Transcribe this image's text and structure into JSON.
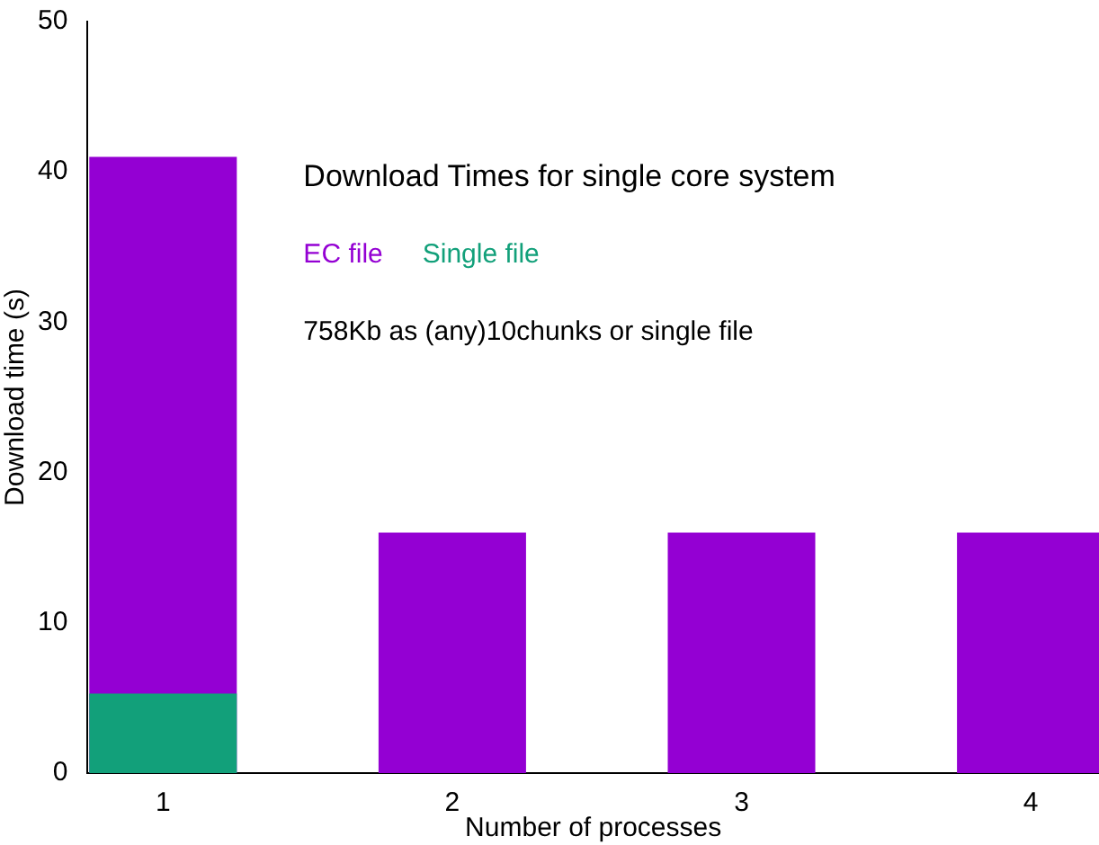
{
  "chart_data": {
    "type": "bar",
    "title": "Download Times for single core system",
    "annotations": [
      "758Kb as (any)10chunks or single file"
    ],
    "xlabel": "Number of processes",
    "ylabel": "Download time (s)",
    "categories": [
      "1",
      "2",
      "3",
      "4"
    ],
    "series": [
      {
        "name": "EC file",
        "color": "#9400d3",
        "values": [
          41,
          16,
          16,
          16
        ]
      },
      {
        "name": "Single file",
        "color": "#12a07a",
        "values": [
          5.3,
          null,
          null,
          null
        ]
      }
    ],
    "ylim": [
      0,
      50
    ],
    "yticks": [
      0,
      10,
      20,
      30,
      40,
      50
    ],
    "legend": "top left"
  }
}
